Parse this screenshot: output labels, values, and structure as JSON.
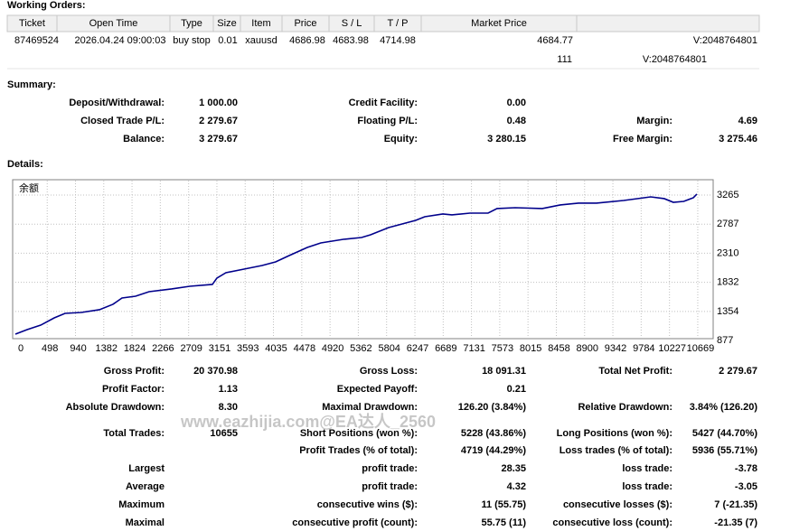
{
  "sections": {
    "working_orders": "Working Orders:",
    "summary": "Summary:",
    "details": "Details:"
  },
  "orders": {
    "headers": [
      "Ticket",
      "Open Time",
      "Type",
      "Size",
      "Item",
      "Price",
      "S / L",
      "T / P",
      "Market Price"
    ],
    "rows": [
      [
        "87469524",
        "2026.04.24 09:00:03",
        "buy stop",
        "0.01",
        "xauusd",
        "4686.98",
        "4683.98",
        "4714.98",
        "4684.77",
        "V:2048764801"
      ]
    ],
    "extra_line": [
      "111",
      "V:2048764801"
    ]
  },
  "summary": [
    [
      {
        "label": "Deposit/Withdrawal:",
        "value": "1 000.00"
      },
      {
        "label": "Credit Facility:",
        "value": "0.00"
      },
      null
    ],
    [
      {
        "label": "Closed Trade P/L:",
        "value": "2 279.67"
      },
      {
        "label": "Floating P/L:",
        "value": "0.48"
      },
      {
        "label": "Margin:",
        "value": "4.69"
      }
    ],
    [
      {
        "label": "Balance:",
        "value": "3 279.67"
      },
      {
        "label": "Equity:",
        "value": "3 280.15"
      },
      {
        "label": "Free Margin:",
        "value": "3 275.46"
      }
    ]
  ],
  "chart_data": {
    "type": "line",
    "x": [
      0,
      184,
      396,
      608,
      777,
      1031,
      1314,
      1526,
      1667,
      1879,
      2091,
      2444,
      2727,
      3080,
      3151,
      3292,
      3575,
      3857,
      4069,
      4281,
      4564,
      4776,
      5129,
      5412,
      5553,
      5836,
      6259,
      6401,
      6683,
      6825,
      7107,
      7390,
      7531,
      7814,
      8238,
      8520,
      8803,
      9086,
      9510,
      9933,
      10145,
      10287,
      10450,
      10600,
      10655
    ],
    "series": [
      {
        "name": "余额",
        "color": "#00008b",
        "values": [
          981,
          1055,
          1129,
          1248,
          1322,
          1337,
          1382,
          1471,
          1574,
          1604,
          1678,
          1723,
          1767,
          1797,
          1901,
          1990,
          2049,
          2108,
          2168,
          2271,
          2405,
          2479,
          2538,
          2568,
          2612,
          2731,
          2850,
          2909,
          2954,
          2939,
          2968,
          2968,
          3043,
          3057,
          3043,
          3102,
          3132,
          3132,
          3176,
          3235,
          3206,
          3146,
          3161,
          3221,
          3280
        ]
      }
    ],
    "xlim": [
      0,
      10910
    ],
    "ylim": [
      907,
      3502
    ],
    "xticks": [
      0,
      498,
      940,
      1382,
      1824,
      2266,
      2709,
      3151,
      3593,
      4035,
      4478,
      4920,
      5362,
      5804,
      6247,
      6689,
      7131,
      7573,
      8015,
      8458,
      8900,
      9342,
      9784,
      10227,
      10669
    ],
    "yticks": [
      877,
      1354,
      1832,
      2310,
      2787,
      3265
    ],
    "grid": true
  },
  "stats": [
    [
      {
        "label": "Gross Profit:",
        "value": "20 370.98"
      },
      {
        "label": "Gross Loss:",
        "value": "18 091.31"
      },
      {
        "label": "Total Net Profit:",
        "value": "2 279.67"
      }
    ],
    [
      {
        "label": "Profit Factor:",
        "value": "1.13"
      },
      {
        "label": "Expected Payoff:",
        "value": "0.21"
      },
      null
    ],
    [
      {
        "label": "Absolute Drawdown:",
        "value": "8.30"
      },
      {
        "label": "Maximal Drawdown:",
        "value": "126.20 (3.84%)"
      },
      {
        "label": "Relative Drawdown:",
        "value": "3.84% (126.20)"
      }
    ],
    [
      {
        "label": "Total Trades:",
        "value": "10655"
      },
      {
        "label": "Short Positions (won %):",
        "value": "5228 (43.86%)"
      },
      {
        "label": "Long Positions (won %):",
        "value": "5427 (44.70%)"
      }
    ],
    [
      null,
      {
        "label": "Profit Trades (% of total):",
        "value": "4719 (44.29%)"
      },
      {
        "label": "Loss trades (% of total):",
        "value": "5936 (55.71%)"
      }
    ],
    [
      {
        "label": "Largest"
      },
      {
        "label": "profit trade:",
        "value": "28.35"
      },
      {
        "label": "loss trade:",
        "value": "-3.78"
      }
    ],
    [
      {
        "label": "Average"
      },
      {
        "label": "profit trade:",
        "value": "4.32"
      },
      {
        "label": "loss trade:",
        "value": "-3.05"
      }
    ],
    [
      {
        "label": "Maximum"
      },
      {
        "label": "consecutive wins ($):",
        "value": "11 (55.75)"
      },
      {
        "label": "consecutive losses ($):",
        "value": "7 (-21.35)"
      }
    ],
    [
      {
        "label": "Maximal"
      },
      {
        "label": "consecutive profit (count):",
        "value": "55.75 (11)"
      },
      {
        "label": "consecutive loss (count):",
        "value": "-21.35 (7)"
      }
    ]
  ],
  "watermark": "www.eazhijia.com@EA达人_2560"
}
